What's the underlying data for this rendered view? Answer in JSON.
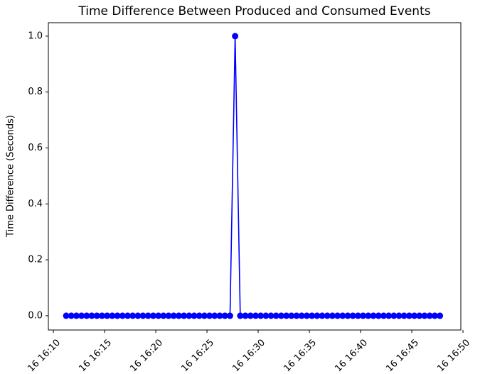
{
  "chart_data": {
    "type": "line",
    "title": "Time Difference Between Produced and Consumed Events",
    "ylabel": "Time Difference (Seconds)",
    "x": [
      11.25,
      11.75,
      12.25,
      12.75,
      13.25,
      13.75,
      14.25,
      14.75,
      15.25,
      15.75,
      16.25,
      16.75,
      17.25,
      17.75,
      18.25,
      18.75,
      19.25,
      19.75,
      20.25,
      20.75,
      21.25,
      21.75,
      22.25,
      22.75,
      23.25,
      23.75,
      24.25,
      24.75,
      25.25,
      25.75,
      26.25,
      26.75,
      27.25,
      27.75,
      28.25,
      28.75,
      29.25,
      29.75,
      30.25,
      30.75,
      31.25,
      31.75,
      32.25,
      32.75,
      33.25,
      33.75,
      34.25,
      34.75,
      35.25,
      35.75,
      36.25,
      36.75,
      37.25,
      37.75,
      38.25,
      38.75,
      39.25,
      39.75,
      40.25,
      40.75,
      41.25,
      41.75,
      42.25,
      42.75,
      43.25,
      43.75,
      44.25,
      44.75,
      45.25,
      45.75,
      46.25,
      46.75,
      47.25,
      47.75
    ],
    "series": [
      {
        "color": "#0000ff",
        "values": [
          0,
          0,
          0,
          0,
          0,
          0,
          0,
          0,
          0,
          0,
          0,
          0,
          0,
          0,
          0,
          0,
          0,
          0,
          0,
          0,
          0,
          0,
          0,
          0,
          0,
          0,
          0,
          0,
          0,
          0,
          0,
          0,
          0,
          1,
          0,
          0,
          0,
          0,
          0,
          0,
          0,
          0,
          0,
          0,
          0,
          0,
          0,
          0,
          0,
          0,
          0,
          0,
          0,
          0,
          0,
          0,
          0,
          0,
          0,
          0,
          0,
          0,
          0,
          0,
          0,
          0,
          0,
          0,
          0,
          0,
          0,
          0,
          0,
          0
        ]
      }
    ],
    "xlim": [
      9.51,
      49.79
    ],
    "xticks": [
      {
        "value": 10,
        "label": "16 16:10"
      },
      {
        "value": 15,
        "label": "16 16:15"
      },
      {
        "value": 20,
        "label": "16 16:20"
      },
      {
        "value": 25,
        "label": "16 16:25"
      },
      {
        "value": 30,
        "label": "16 16:30"
      },
      {
        "value": 35,
        "label": "16 16:35"
      },
      {
        "value": 40,
        "label": "16 16:40"
      },
      {
        "value": 45,
        "label": "16 16:45"
      },
      {
        "value": 50,
        "label": "16 16:50"
      }
    ],
    "ylim": [
      -0.051,
      1.048
    ],
    "yticks": [
      {
        "value": 0,
        "label": "0.0"
      },
      0.2,
      0.4,
      0.6,
      0.8,
      {
        "value": 1,
        "label": "1.0"
      }
    ]
  }
}
